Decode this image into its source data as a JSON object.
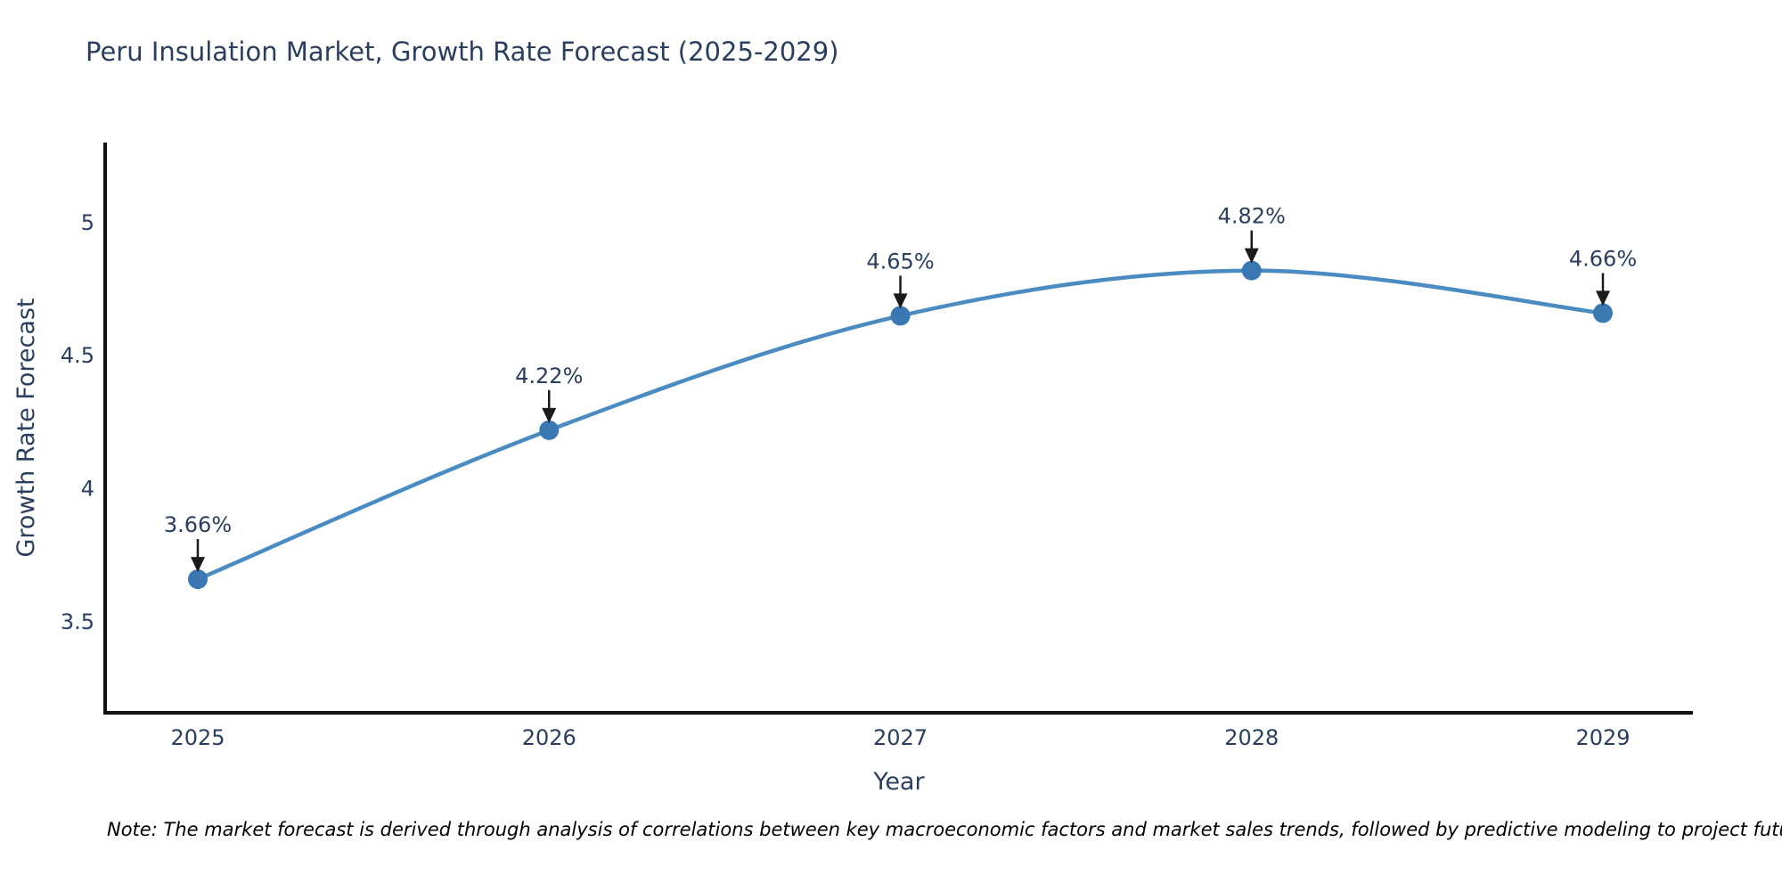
{
  "chart": {
    "title": "Peru Insulation Market, Growth Rate Forecast (2025-2029)",
    "x_axis_title": "Year",
    "y_axis_title": "Growth Rate Forecast",
    "note": "Note: The market forecast is derived through analysis of correlations between key macroeconomic factors and market sales trends, followed by predictive modeling to project future sales",
    "colors": {
      "title_text": "#2a3f5f",
      "axis_text": "#2a3f5f",
      "tick_text": "#2a3f5f",
      "axis_line": "#111111",
      "annotation_text": "#2a3f5f",
      "annotation_arrow": "#1a1a1a",
      "line": "#4a8bc2",
      "marker": "#3a78b3",
      "note_text": "#000000",
      "background": "#ffffff"
    }
  },
  "chart_data": {
    "type": "line",
    "line_shape": "spline",
    "title": "Peru Insulation Market, Growth Rate Forecast (2025-2029)",
    "xlabel": "Year",
    "ylabel": "Growth Rate Forecast",
    "categories": [
      "2025",
      "2026",
      "2027",
      "2028",
      "2029"
    ],
    "values": [
      3.66,
      4.22,
      4.65,
      4.82,
      4.66
    ],
    "point_labels": [
      "3.66%",
      "4.22%",
      "4.65%",
      "4.82%",
      "4.66%"
    ],
    "yticks": [
      3.5,
      4,
      4.5,
      5
    ],
    "ylim": [
      3.158,
      5.301
    ],
    "grid": false,
    "legend": "none",
    "markers": true,
    "annotations": "value labels with down arrows above each point"
  }
}
